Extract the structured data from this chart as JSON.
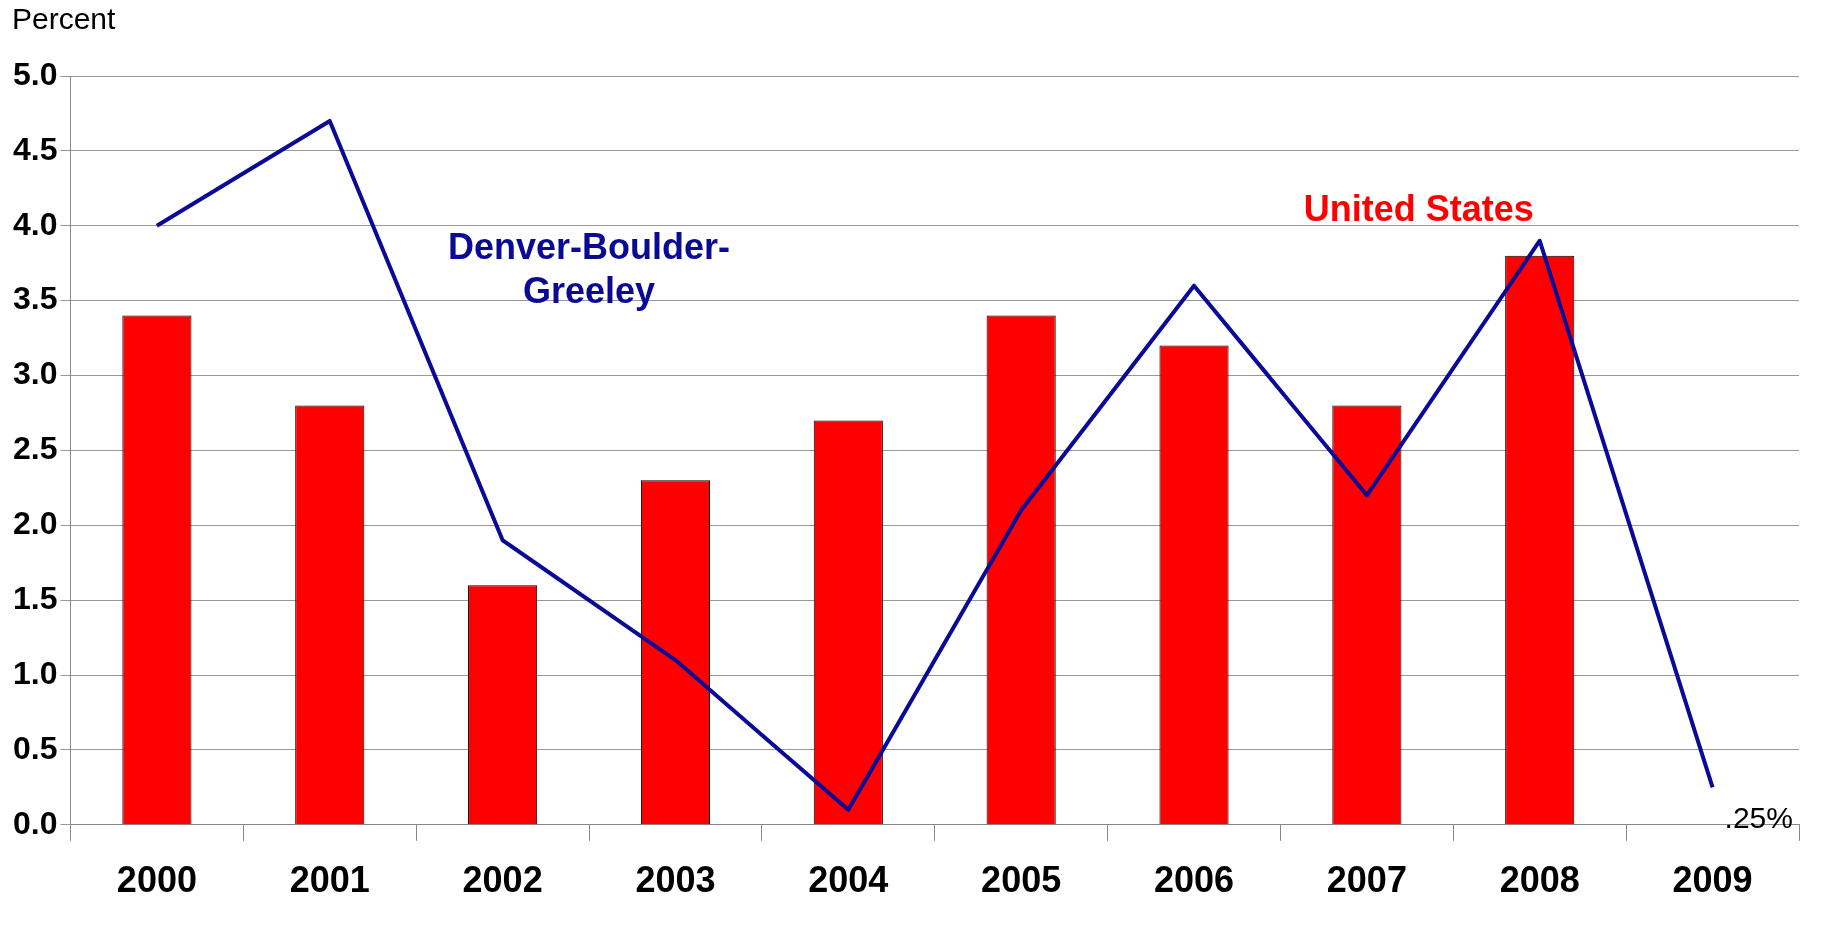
{
  "chart_data": {
    "type": "bar",
    "ylabel": "Percent",
    "categories": [
      "2000",
      "2001",
      "2002",
      "2003",
      "2004",
      "2005",
      "2006",
      "2007",
      "2008",
      "2009"
    ],
    "series": [
      {
        "name": "United States",
        "color": "#ff0000",
        "values": [
          3.4,
          2.8,
          1.6,
          2.3,
          2.7,
          3.4,
          3.2,
          2.8,
          3.8,
          null
        ]
      },
      {
        "name": "Denver-Boulder-Greeley",
        "type": "line",
        "color": "#0a0a96",
        "values": [
          4.0,
          4.7,
          1.9,
          1.1,
          0.1,
          2.1,
          3.6,
          2.2,
          3.9,
          0.25
        ]
      }
    ],
    "ylim": [
      0,
      5
    ],
    "yticks": [
      {
        "value": 0,
        "label": "0.0"
      },
      {
        "value": 0.5,
        "label": "0.5"
      },
      {
        "value": 1,
        "label": "1.0"
      },
      {
        "value": 1.5,
        "label": "1.5"
      },
      {
        "value": 2,
        "label": "2.0"
      },
      {
        "value": 2.5,
        "label": "2.5"
      },
      {
        "value": 3,
        "label": "3.0"
      },
      {
        "value": 3.5,
        "label": "3.5"
      },
      {
        "value": 4,
        "label": "4.0"
      },
      {
        "value": 4.5,
        "label": "4.5"
      },
      {
        "value": 5,
        "label": "5.0"
      }
    ],
    "annotations": [
      {
        "text": ".25%",
        "x": "2009",
        "y": 0.25
      }
    ],
    "grid": "y",
    "legend": false,
    "marker": "none",
    "line_style": "solid"
  }
}
